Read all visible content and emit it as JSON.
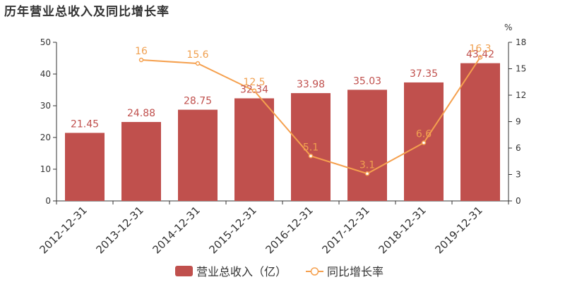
{
  "title": "历年营业总收入及同比增长率",
  "chart_data": {
    "type": "bar",
    "title": "历年营业总收入及同比增长率",
    "categories": [
      "2012-12-31",
      "2013-12-31",
      "2014-12-31",
      "2015-12-31",
      "2016-12-31",
      "2017-12-31",
      "2018-12-31",
      "2019-12-31"
    ],
    "series": [
      {
        "name": "营业总收入（亿）",
        "type": "bar",
        "axis": "left",
        "values": [
          21.45,
          24.88,
          28.75,
          32.34,
          33.98,
          35.03,
          37.35,
          43.42
        ],
        "labels": [
          "21.45",
          "24.88",
          "28.75",
          "32.34",
          "33.98",
          "35.03",
          "37.35",
          "43.42"
        ]
      },
      {
        "name": "同比增长率",
        "type": "line",
        "axis": "right",
        "values": [
          null,
          16,
          15.6,
          12.5,
          5.1,
          3.1,
          6.6,
          16.3
        ],
        "labels": [
          "",
          "16",
          "15.6",
          "12.5",
          "5.1",
          "3.1",
          "6.6",
          "16.3"
        ]
      }
    ],
    "y_left": {
      "min": 0,
      "max": 50,
      "ticks": [
        0,
        10,
        20,
        30,
        40,
        50
      ],
      "tick_labels": [
        "0",
        "10",
        "20",
        "30",
        "40",
        "50"
      ]
    },
    "y_right": {
      "min": 0,
      "max": 18,
      "ticks": [
        0,
        3,
        6,
        9,
        12,
        15,
        18
      ],
      "tick_labels": [
        "0",
        "3",
        "6",
        "9",
        "12",
        "15",
        "18"
      ],
      "unit": "%"
    },
    "legend": {
      "position": "bottom-center",
      "items": [
        "营业总收入（亿）",
        "同比增长率"
      ]
    },
    "grid": false,
    "colors": {
      "bar": "#c0504d",
      "line": "#f5a04e",
      "bar_label": "#c0504d",
      "line_label": "#f0a050"
    }
  }
}
